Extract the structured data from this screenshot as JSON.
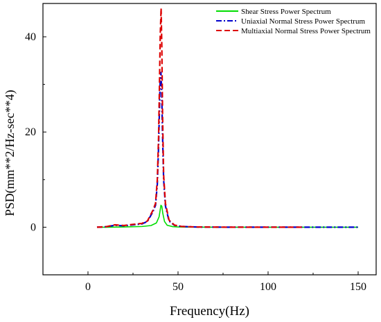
{
  "chart_data": {
    "type": "line",
    "title": "",
    "xlabel": "Frequency(Hz)",
    "ylabel": "PSD(mm**2/Hz-sec**4)",
    "xlim": [
      -25,
      160
    ],
    "ylim": [
      -10,
      47
    ],
    "xticks": [
      0,
      50,
      100,
      150
    ],
    "yticks": [
      0,
      20,
      40
    ],
    "grid": false,
    "legend_position": "top-right",
    "series": [
      {
        "name": "Shear Stress Power Spectrum",
        "color": "#00dd00",
        "dash": "solid",
        "x": [
          5,
          10,
          20,
          30,
          35,
          38,
          39.5,
          40.5,
          41,
          41.5,
          42.5,
          44,
          47,
          50,
          60,
          80,
          100,
          150
        ],
        "y": [
          0,
          0,
          0.05,
          0.15,
          0.35,
          0.9,
          2.2,
          4.6,
          4.4,
          3.0,
          1.2,
          0.4,
          0.12,
          0.05,
          0.02,
          0,
          0,
          0
        ]
      },
      {
        "name": "Uniaxial Normal Stress Power Spectrum",
        "color": "#0000cc",
        "dash": "dashdot",
        "x": [
          5,
          10,
          15,
          20,
          25,
          30,
          33,
          36,
          37.5,
          38.5,
          39.2,
          39.7,
          40.1,
          40.5,
          40.9,
          41.3,
          42,
          43,
          45,
          48,
          52,
          60,
          80,
          100,
          120,
          150
        ],
        "y": [
          0,
          0.1,
          0.4,
          0.3,
          0.5,
          0.7,
          1.2,
          3.2,
          4.6,
          9.0,
          17,
          25,
          31,
          32.5,
          29,
          21,
          10,
          4.5,
          1.3,
          0.4,
          0.15,
          0.05,
          0,
          0,
          0,
          0
        ]
      },
      {
        "name": "Multiaxial Normal Stress Power Spectrum",
        "color": "#dd0000",
        "dash": "dashed",
        "x": [
          5,
          10,
          15,
          20,
          25,
          30,
          33,
          36,
          37.5,
          38.5,
          39.2,
          39.7,
          40.1,
          40.6,
          41,
          41.4,
          42,
          43,
          45,
          48,
          52,
          60,
          80,
          100,
          120
        ],
        "y": [
          0,
          0.1,
          0.5,
          0.35,
          0.6,
          0.8,
          1.3,
          3.5,
          5.0,
          10,
          19,
          30,
          40,
          46,
          38,
          24,
          11,
          5,
          1.5,
          0.45,
          0.15,
          0.05,
          0,
          0,
          0
        ]
      }
    ]
  }
}
